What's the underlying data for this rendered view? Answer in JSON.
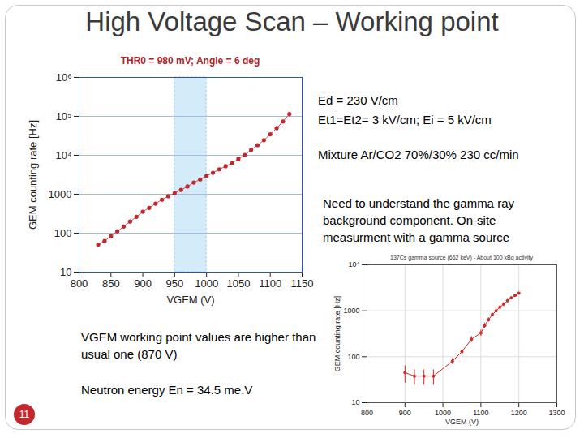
{
  "slide": {
    "title": "High Voltage Scan – Working point",
    "page_number": "11",
    "notes": [
      "Ed = 230 V/cm",
      "Et1=Et2= 3 kV/cm; Ei = 5 kV/cm",
      "Mixture Ar/CO2 70%/30% 230 cc/min",
      "Need to understand the gamma ray background component. On-site measurment with a gamma source",
      "VGEM working point values are higher than usual one (870 V)",
      "Neutron energy En = 34.5 me.V"
    ]
  },
  "chart_data": [
    {
      "type": "line",
      "title": "THR0 = 980 mV; Angle = 6 deg",
      "x_label": "VGEM (V)",
      "y_label": "GEM counting rate [Hz]",
      "x": [
        830,
        840,
        850,
        860,
        870,
        880,
        890,
        900,
        910,
        920,
        930,
        940,
        950,
        960,
        970,
        980,
        990,
        1000,
        1010,
        1020,
        1030,
        1040,
        1050,
        1060,
        1070,
        1080,
        1090,
        1100,
        1110,
        1120,
        1130
      ],
      "values": [
        51,
        63,
        83,
        112,
        148,
        199,
        263,
        355,
        447,
        575,
        724,
        891,
        1070,
        1290,
        1580,
        2000,
        2400,
        2950,
        3550,
        4370,
        5250,
        6300,
        8100,
        10200,
        13800,
        18200,
        24500,
        34700,
        50000,
        74000,
        115000
      ],
      "color": "#c0282d",
      "marker": "circle",
      "log": "y",
      "grid": "y",
      "xlim": [
        800,
        1150
      ],
      "xticks": [
        800,
        850,
        900,
        950,
        1000,
        1050,
        1100,
        1150
      ],
      "ylim": [
        10,
        1000000
      ],
      "yticks": [
        10,
        100,
        1000,
        {
          "value": 10000,
          "label": "10⁴"
        },
        {
          "value": 100000,
          "label": "10⁵"
        },
        {
          "value": 1000000,
          "label": "10⁶"
        }
      ],
      "highlight_range": [
        950,
        1000
      ]
    },
    {
      "type": "line",
      "title": "137Cs gamma source (662 keV) - About 100 kBq activity",
      "x_label": "VGEM (V)",
      "y_label": "GEM counting rate [Hz]",
      "x": [
        900,
        925,
        950,
        975,
        1025,
        1050,
        1075,
        1100,
        1110,
        1120,
        1130,
        1140,
        1150,
        1160,
        1170,
        1180,
        1190,
        1200
      ],
      "values": [
        45,
        38,
        38,
        38,
        80,
        130,
        240,
        330,
        480,
        640,
        820,
        1000,
        1200,
        1400,
        1650,
        1900,
        2150,
        2400
      ],
      "errors": [
        18,
        14,
        14,
        14,
        12,
        18,
        35,
        50,
        60,
        70,
        80,
        90,
        100,
        110,
        120,
        130,
        140,
        150
      ],
      "color": "#d02a2a",
      "marker": "circle",
      "log": "y",
      "grid": true,
      "xlim": [
        800,
        1300
      ],
      "xticks": [
        800,
        900,
        1000,
        1100,
        1200,
        1300
      ],
      "ylim": [
        10,
        10000
      ],
      "yticks": [
        10,
        100,
        1000,
        {
          "value": 10000,
          "label": "10⁴"
        }
      ]
    }
  ]
}
